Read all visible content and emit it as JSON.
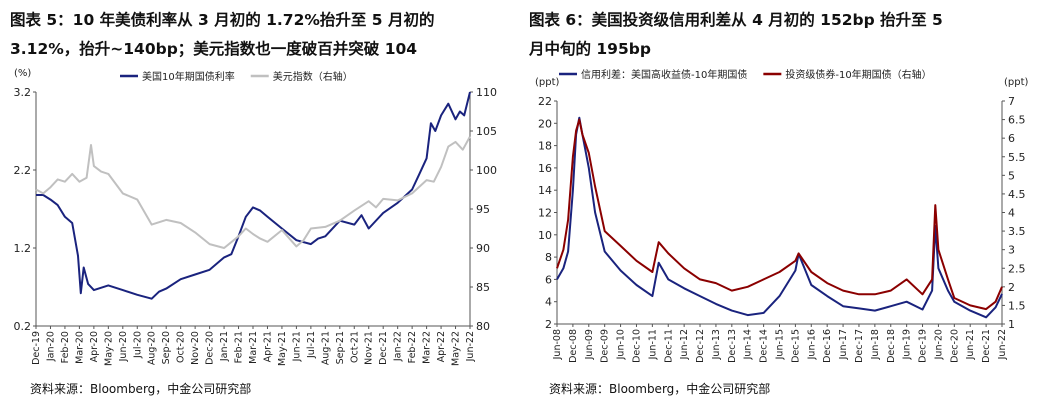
{
  "figures": [
    {
      "title_line1": "图表 5：10 年美债利率从 3 月初的 1.72%抬升至 5 月初的",
      "title_line2": "3.12%，抬升~140bp；美元指数也一度破百并突破 104",
      "source": "资料来源：Bloomberg，中金公司研究部"
    },
    {
      "title_line1": "图表 6：美国投资级信用利差从 4 月初的 152bp 抬升至 5",
      "title_line2": "月中旬的 195bp",
      "source": "资料来源：Bloomberg，中金公司研究部"
    }
  ],
  "chart_data": [
    {
      "type": "line",
      "left_unit": "(%)",
      "right_unit": "",
      "ylim_left": [
        0.2,
        3.2
      ],
      "yticks_left": [
        "0.2",
        "1.2",
        "2.2",
        "3.2"
      ],
      "ylim_right": [
        80,
        110
      ],
      "yticks_right": [
        "80",
        "85",
        "90",
        "95",
        "100",
        "105",
        "110"
      ],
      "x_range": [
        0,
        30
      ],
      "x_ticks": [
        "Dec-19",
        "Jan-20",
        "Feb-20",
        "Mar-20",
        "Apr-20",
        "May-20",
        "Jun-20",
        "Jul-20",
        "Aug-20",
        "Sep-20",
        "Oct-20",
        "Nov-20",
        "Dec-20",
        "Jan-21",
        "Feb-21",
        "Mar-21",
        "Apr-21",
        "May-21",
        "Jun-21",
        "Jul-21",
        "Aug-21",
        "Sep-21",
        "Oct-21",
        "Nov-21",
        "Dec-21",
        "Jan-22",
        "Feb-22",
        "Mar-22",
        "Apr-22",
        "May-22",
        "Jun-22"
      ],
      "x_labels_shown": [
        "Dec-19",
        "Feb-20",
        "Apr-20",
        "Jun-20",
        "Aug-20",
        "Oct-20",
        "Dec-20",
        "Feb-21",
        "Apr-21",
        "Jun-21",
        "Aug-21",
        "Oct-21",
        "Dec-21",
        "Feb-22",
        "Apr-22",
        "Jun-22"
      ],
      "x_labels_shown_alt": [
        "Jan-20",
        "Mar-20",
        "May-20",
        "Jul-20",
        "Sep-20",
        "Nov-20",
        "Jan-21",
        "Mar-21",
        "May-21",
        "Jul-21",
        "Sep-21",
        "Nov-21",
        "Jan-22",
        "Mar-22",
        "May-22"
      ],
      "series": [
        {
          "name": "美国10年期国债利率",
          "axis": "left",
          "color": "#1a237e",
          "x": [
            0,
            0.5,
            1,
            1.5,
            2,
            2.5,
            2.9,
            3.1,
            3.3,
            3.6,
            4,
            5,
            6,
            7,
            8,
            8.5,
            9,
            10,
            11,
            12,
            13,
            13.5,
            14,
            14.5,
            15,
            15.5,
            16,
            17,
            18,
            19,
            19.5,
            20,
            21,
            22,
            22.5,
            23,
            24,
            25,
            26,
            26.5,
            27,
            27.3,
            27.6,
            28,
            28.5,
            29,
            29.3,
            29.6,
            30
          ],
          "values": [
            1.88,
            1.88,
            1.82,
            1.75,
            1.6,
            1.52,
            1.1,
            0.62,
            0.95,
            0.74,
            0.66,
            0.72,
            0.66,
            0.6,
            0.55,
            0.64,
            0.68,
            0.8,
            0.86,
            0.92,
            1.08,
            1.12,
            1.35,
            1.6,
            1.72,
            1.68,
            1.6,
            1.45,
            1.3,
            1.25,
            1.32,
            1.35,
            1.55,
            1.5,
            1.62,
            1.45,
            1.65,
            1.78,
            1.95,
            2.15,
            2.35,
            2.8,
            2.7,
            2.9,
            3.05,
            2.85,
            2.95,
            2.9,
            3.2
          ]
        },
        {
          "name": "美元指数（右轴）",
          "axis": "right",
          "color": "#c0c0c0",
          "x": [
            0,
            0.5,
            1,
            1.5,
            2,
            2.5,
            3,
            3.5,
            3.8,
            4,
            4.5,
            5,
            6,
            7,
            8,
            9,
            10,
            11,
            12,
            13,
            14,
            14.5,
            15,
            15.5,
            16,
            17,
            18,
            18.5,
            19,
            20,
            21,
            22,
            23,
            23.5,
            24,
            25,
            26,
            27,
            27.5,
            28,
            28.5,
            29,
            29.5,
            30
          ],
          "values": [
            97.5,
            97,
            97.8,
            98.8,
            98.5,
            99.5,
            98.5,
            99,
            103.2,
            100.5,
            99.8,
            99.5,
            97,
            96.2,
            93,
            93.6,
            93.2,
            92,
            90.5,
            90,
            91.5,
            92.5,
            91.8,
            91.2,
            90.8,
            92.3,
            90.2,
            91,
            92.5,
            92.7,
            93.5,
            94.8,
            96,
            95.2,
            96.3,
            96.1,
            97,
            98.7,
            98.5,
            100.4,
            103,
            103.6,
            102.6,
            104.3
          ]
        }
      ],
      "legend_position": "top-center",
      "grid": false
    },
    {
      "type": "line",
      "left_unit": "(ppt)",
      "right_unit": "(ppt)",
      "ylim_left": [
        2,
        22
      ],
      "yticks_left": [
        "2",
        "4",
        "6",
        "8",
        "10",
        "12",
        "14",
        "16",
        "18",
        "20",
        "22"
      ],
      "ylim_right": [
        1,
        7
      ],
      "yticks_right": [
        "1",
        "1.5",
        "2",
        "2.5",
        "3",
        "3.5",
        "4",
        "4.5",
        "5",
        "5.5",
        "6",
        "6.5",
        "7"
      ],
      "x_range": [
        0,
        14
      ],
      "x_ticks": [
        "Jun-08",
        "Dec-08",
        "Jun-09",
        "Dec-09",
        "Jun-10",
        "Dec-10",
        "Jun-11",
        "Dec-11",
        "Jun-12",
        "Dec-12",
        "Jun-13",
        "Dec-13",
        "Jun-14",
        "Dec-14",
        "Jun-15",
        "Dec-15",
        "Jun-16",
        "Dec-16",
        "Jun-17",
        "Dec-17",
        "Jun-18",
        "Dec-18",
        "Jun-19",
        "Dec-19",
        "Jun-20",
        "Dec-20",
        "Jun-21",
        "Dec-21",
        "Jun-22"
      ],
      "x_labels_shown": [
        "Jun-08",
        "Dec-08",
        "Jun-09",
        "Dec-09",
        "Jun-10",
        "Dec-10",
        "Jun-11",
        "Dec-11",
        "Jun-12",
        "Dec-12",
        "Jun-13",
        "Dec-13",
        "Jun-14",
        "Dec-14",
        "Jun-15",
        "Dec-15",
        "Jun-16",
        "Dec-16",
        "Jun-17",
        "Dec-17",
        "Jun-18",
        "Dec-18",
        "Jun-19",
        "Dec-19",
        "Jun-20",
        "Dec-20",
        "Jun-21",
        "Dec-21",
        "Jun-22"
      ],
      "series": [
        {
          "name": "信用利差：美国高收益债-10年期国债",
          "axis": "left",
          "color": "#1a237e",
          "x": [
            0,
            0.2,
            0.35,
            0.5,
            0.6,
            0.7,
            0.8,
            1,
            1.2,
            1.5,
            2,
            2.5,
            3,
            3.2,
            3.5,
            4,
            4.5,
            5,
            5.5,
            6,
            6.5,
            7,
            7.5,
            7.6,
            8,
            8.5,
            9,
            9.5,
            10,
            10.5,
            11,
            11.5,
            11.8,
            11.9,
            12,
            12.3,
            12.5,
            13,
            13.5,
            13.8,
            14
          ],
          "values": [
            6,
            7,
            8.5,
            14,
            19,
            20.5,
            19,
            16,
            12,
            8.5,
            6.8,
            5.5,
            4.5,
            7.5,
            6,
            5.2,
            4.5,
            3.8,
            3.2,
            2.8,
            3,
            4.5,
            6.8,
            8.3,
            5.5,
            4.5,
            3.6,
            3.4,
            3.2,
            3.6,
            4,
            3.3,
            5,
            10.8,
            7,
            5,
            4,
            3.2,
            2.6,
            3.5,
            4.7
          ]
        },
        {
          "name": "投资级债券-10年期国债（右轴）",
          "axis": "right",
          "color": "#8b0000",
          "x": [
            0,
            0.2,
            0.35,
            0.5,
            0.6,
            0.7,
            0.8,
            1,
            1.2,
            1.5,
            2,
            2.5,
            3,
            3.2,
            3.5,
            4,
            4.5,
            5,
            5.5,
            6,
            6.5,
            7,
            7.5,
            7.6,
            8,
            8.5,
            9,
            9.5,
            10,
            10.5,
            11,
            11.5,
            11.8,
            11.9,
            12,
            12.3,
            12.5,
            13,
            13.5,
            13.8,
            14
          ],
          "values": [
            2.5,
            3,
            3.8,
            5.5,
            6.2,
            6.5,
            6.1,
            5.6,
            4.7,
            3.5,
            3.1,
            2.7,
            2.4,
            3.2,
            2.9,
            2.5,
            2.2,
            2.1,
            1.9,
            2,
            2.2,
            2.4,
            2.7,
            2.9,
            2.4,
            2.1,
            1.9,
            1.8,
            1.8,
            1.9,
            2.2,
            1.8,
            2.2,
            4.2,
            3,
            2.2,
            1.7,
            1.5,
            1.4,
            1.6,
            2
          ]
        }
      ],
      "legend_position": "top-center",
      "grid": false
    }
  ]
}
